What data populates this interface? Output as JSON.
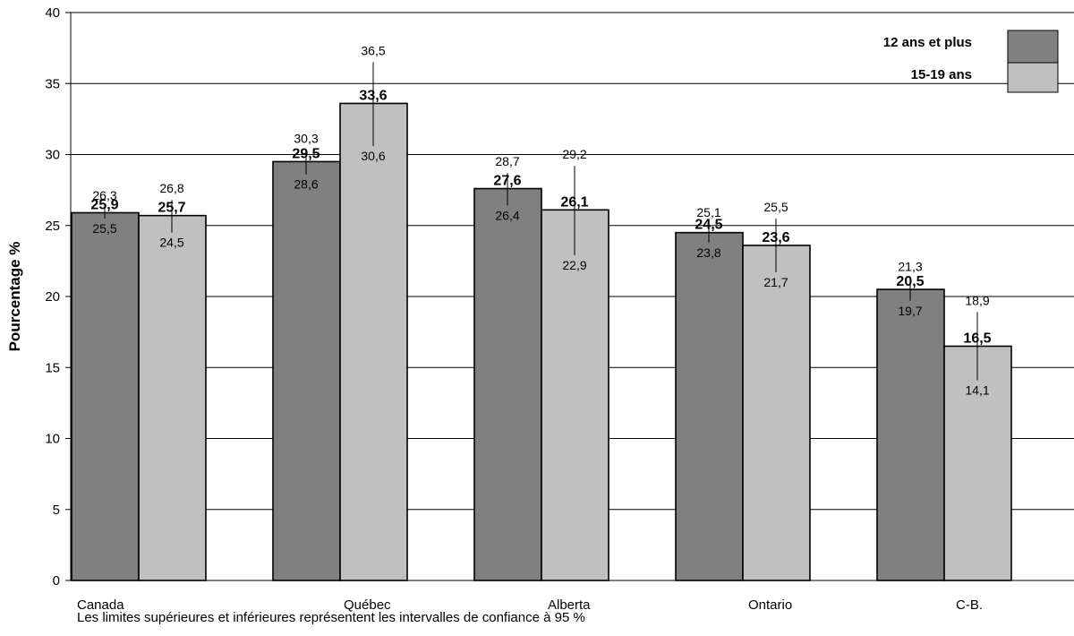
{
  "chart_data": {
    "type": "bar",
    "ylabel": "Pourcentage %",
    "ylim": [
      0,
      40
    ],
    "yticks": [
      0,
      5,
      10,
      15,
      20,
      25,
      30,
      35,
      40
    ],
    "grid": true,
    "legend_position": "top-right",
    "categories": [
      "Canada",
      "Québec",
      "Alberta",
      "Ontario",
      "C-B."
    ],
    "series": [
      {
        "name": "12 ans et plus",
        "color": "#808080",
        "values": [
          25.9,
          29.5,
          27.6,
          24.5,
          20.5
        ],
        "value_labels": [
          "25,9",
          "29,5",
          "27,6",
          "24,5",
          "20,5"
        ],
        "upper": [
          26.3,
          30.3,
          28.7,
          25.1,
          21.3
        ],
        "upper_labels": [
          "26,3",
          "30,3",
          "28,7",
          "25,1",
          "21,3"
        ],
        "lower": [
          25.5,
          28.6,
          26.4,
          23.8,
          19.7
        ],
        "lower_labels": [
          "25,5",
          "28,6",
          "26,4",
          "23,8",
          "19,7"
        ]
      },
      {
        "name": "15-19 ans",
        "color": "#c0c0c0",
        "values": [
          25.7,
          33.6,
          26.1,
          23.6,
          16.5
        ],
        "value_labels": [
          "25,7",
          "33,6",
          "26,1",
          "23,6",
          "16,5"
        ],
        "upper": [
          26.8,
          36.5,
          29.2,
          25.5,
          18.9
        ],
        "upper_labels": [
          "26,8",
          "36,5",
          "29,2",
          "25,5",
          "18,9"
        ],
        "lower": [
          24.5,
          30.6,
          22.9,
          21.7,
          14.1
        ],
        "lower_labels": [
          "24,5",
          "30,6",
          "22,9",
          "21,7",
          "14,1"
        ]
      }
    ],
    "note": "Les limites supérieures et inférieures représentent les intervalles de confiance à 95 %"
  }
}
